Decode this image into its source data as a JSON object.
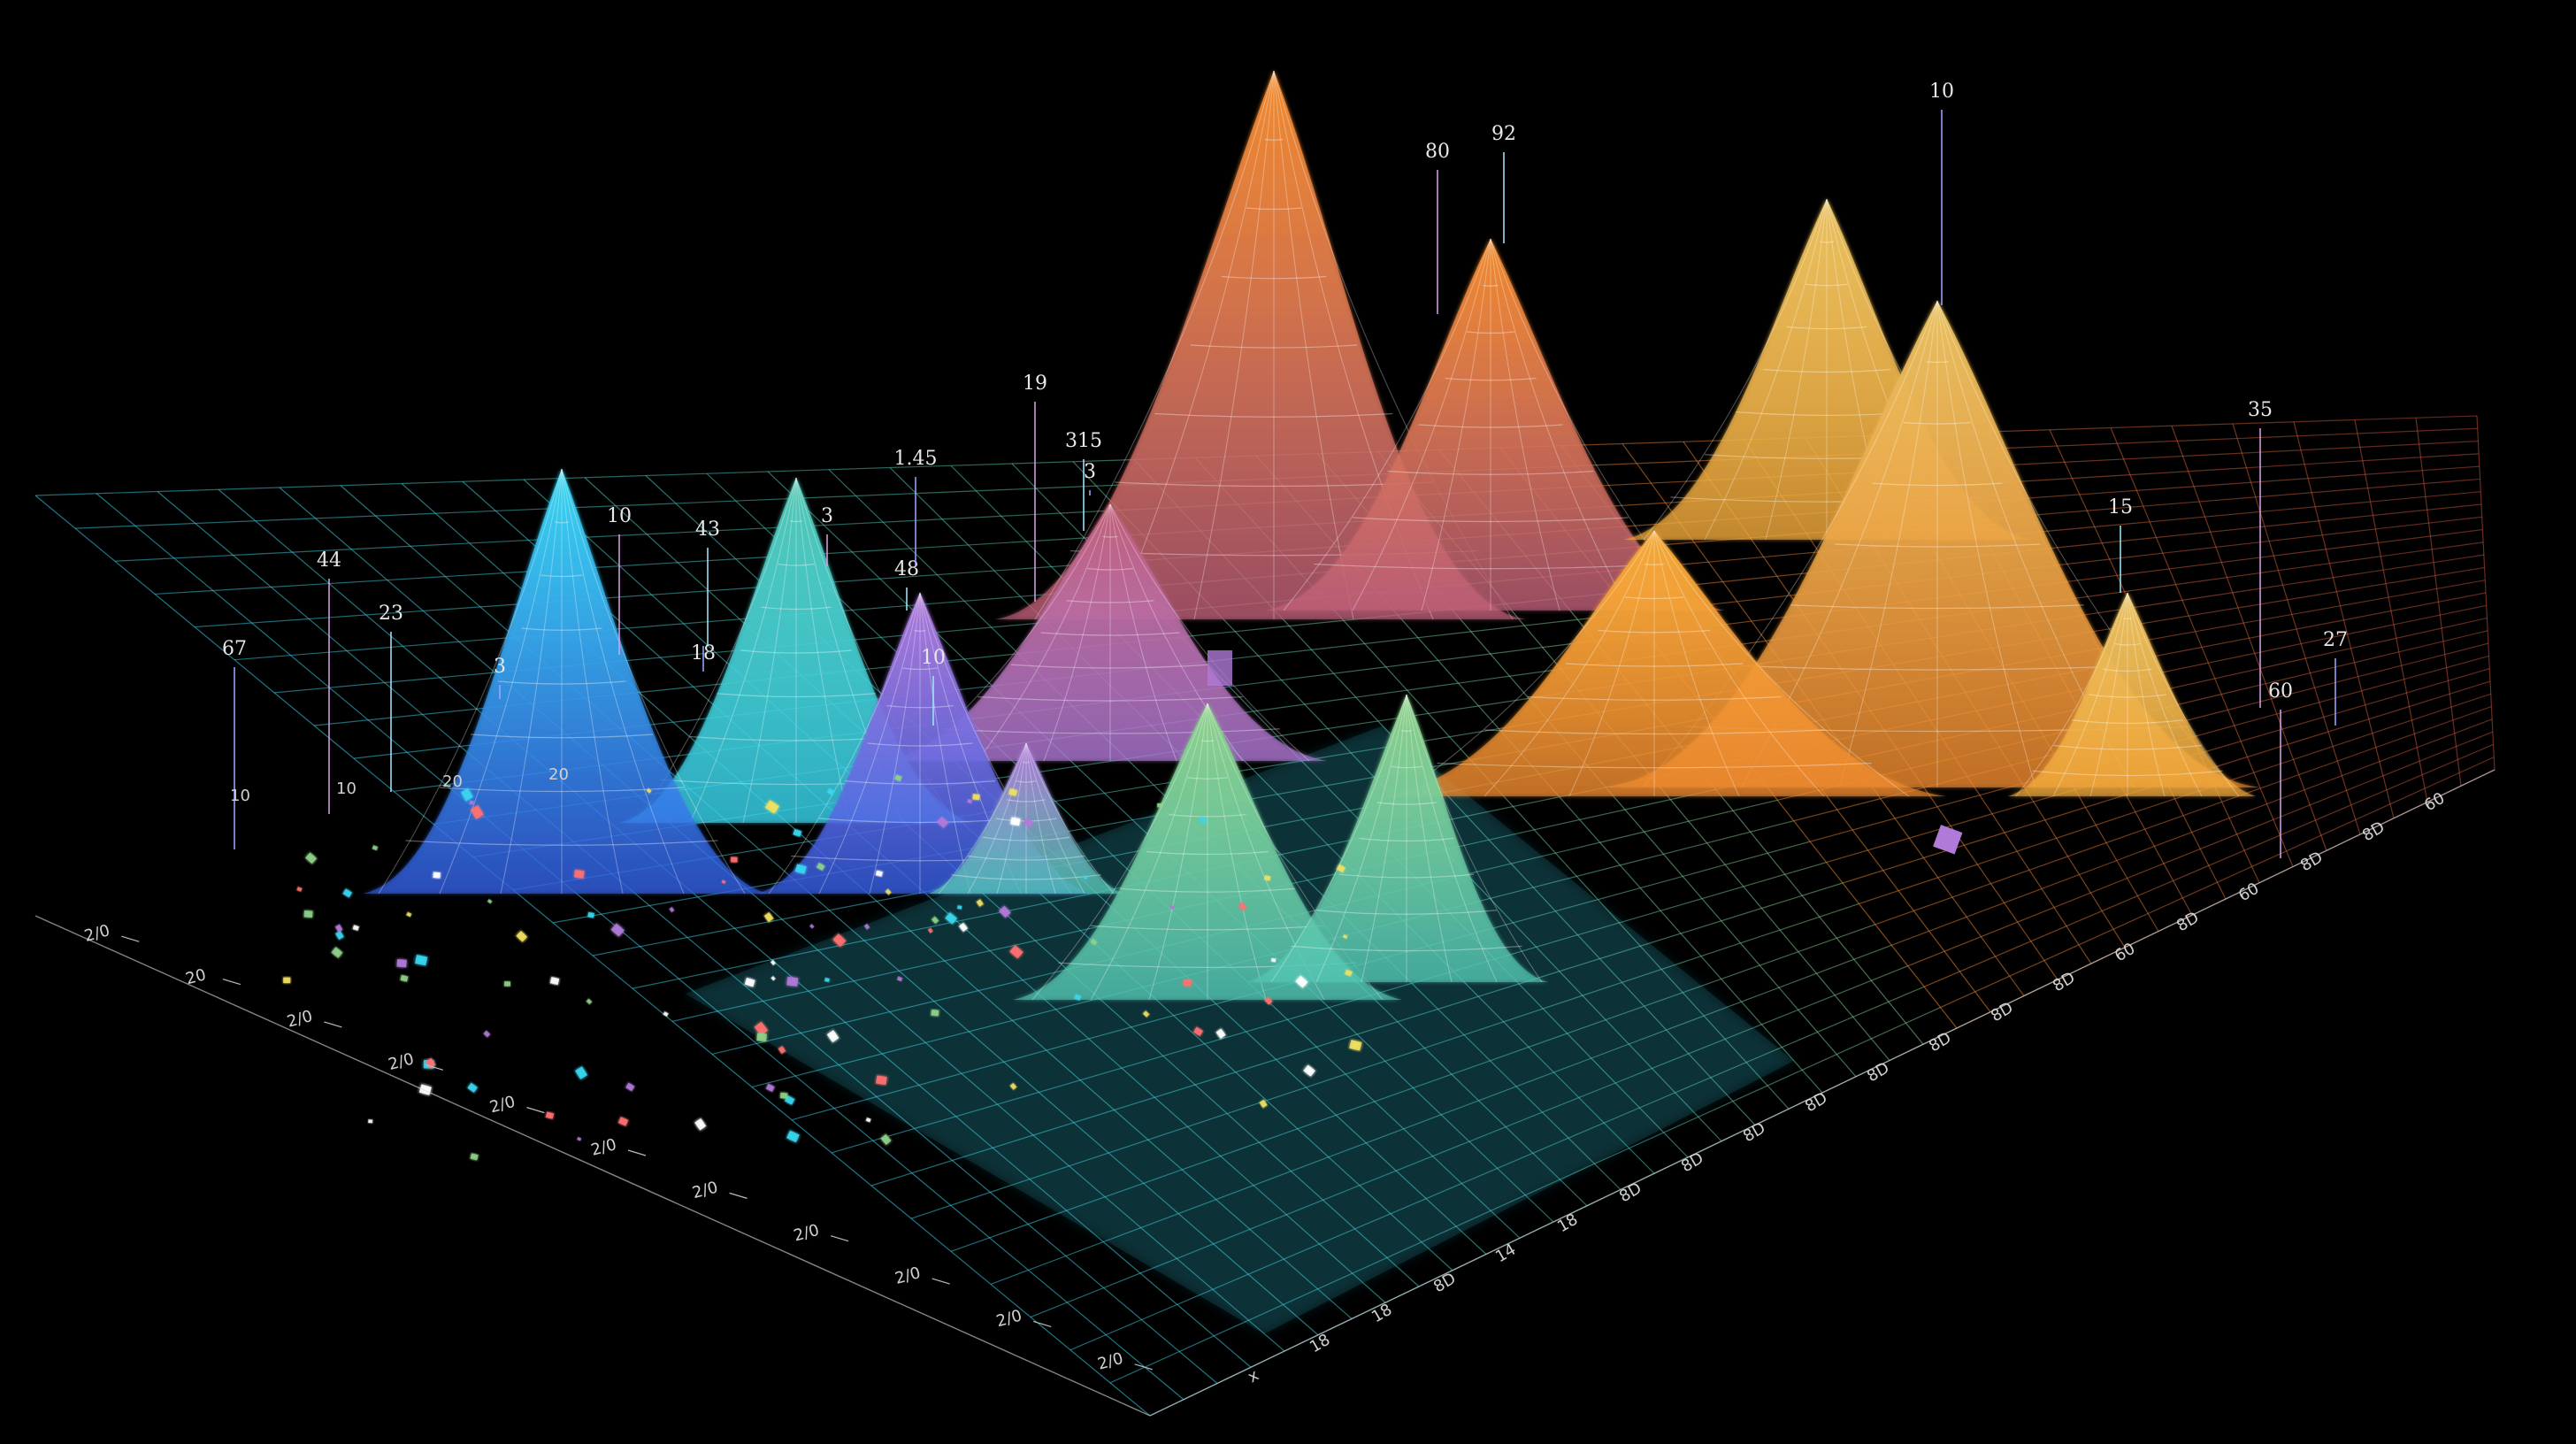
{
  "chart_data": {
    "type": "surface-3d",
    "title": "",
    "xlabel": "",
    "ylabel": "",
    "zlabel": "",
    "grid": true,
    "legend": "none",
    "colors": {
      "background": "#000000",
      "cyan": "#38d6f0",
      "blue": "#3560e8",
      "teal": "#52c6b4",
      "green": "#8ed08a",
      "violet": "#b07ad8",
      "rose": "#c0607a",
      "orange": "#f08a2e",
      "amber": "#f4aa3a",
      "gold": "#e8c060",
      "red-grid": "#c0503c",
      "wire": "#ffffff"
    },
    "peak_labels": [
      "67",
      "44",
      "23",
      "3",
      "10",
      "43",
      "18",
      "3",
      "48",
      "1.45",
      "19",
      "315",
      "3",
      "80",
      "92",
      "10",
      "35",
      "15",
      "27",
      "60",
      "10"
    ],
    "left_axis_ticks": [
      "2/0",
      "20",
      "2/0",
      "2/0",
      "2/0",
      "2/0",
      "2/0",
      "2/0",
      "2/0",
      "2/0",
      "2/0"
    ],
    "front_axis_ticks": [
      "x",
      "18",
      "18",
      "8D",
      "14",
      "18",
      "8D",
      "8D",
      "8D",
      "8D",
      "8D",
      "8D",
      "8D",
      "8D",
      "60",
      "8D",
      "60",
      "8D",
      "8D",
      "60"
    ],
    "back_axis_ticks": [
      "10",
      "10",
      "20",
      "20"
    ]
  }
}
